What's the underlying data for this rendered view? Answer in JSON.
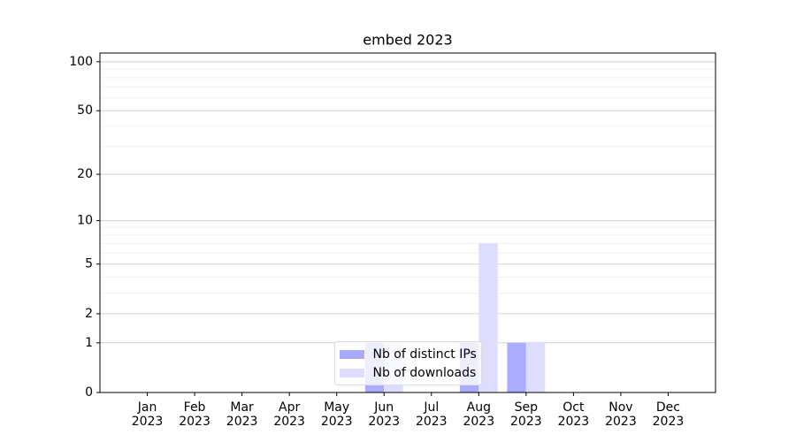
{
  "chart_data": {
    "type": "bar",
    "title": "embed 2023",
    "categories": [
      "Jan\n2023",
      "Feb\n2023",
      "Mar\n2023",
      "Apr\n2023",
      "May\n2023",
      "Jun\n2023",
      "Jul\n2023",
      "Aug\n2023",
      "Sep\n2023",
      "Oct\n2023",
      "Nov\n2023",
      "Dec\n2023"
    ],
    "series": [
      {
        "name": "Nb of distinct IPs",
        "color": "#aaaaff",
        "values": [
          0,
          0,
          0,
          0,
          0,
          1,
          0,
          1,
          1,
          0,
          0,
          0
        ]
      },
      {
        "name": "Nb of downloads",
        "color": "#ddddff",
        "values": [
          0,
          0,
          0,
          0,
          0,
          1,
          0,
          7,
          1,
          0,
          0,
          0
        ]
      }
    ],
    "yscale": "log1p",
    "ylim": [
      0,
      113
    ],
    "yticks": [
      0,
      1,
      2,
      5,
      10,
      20,
      50,
      100
    ],
    "yticks_minor": [
      3,
      4,
      6,
      7,
      8,
      9,
      30,
      40,
      60,
      70,
      80,
      90
    ],
    "grid": true,
    "legend": "lower center"
  }
}
